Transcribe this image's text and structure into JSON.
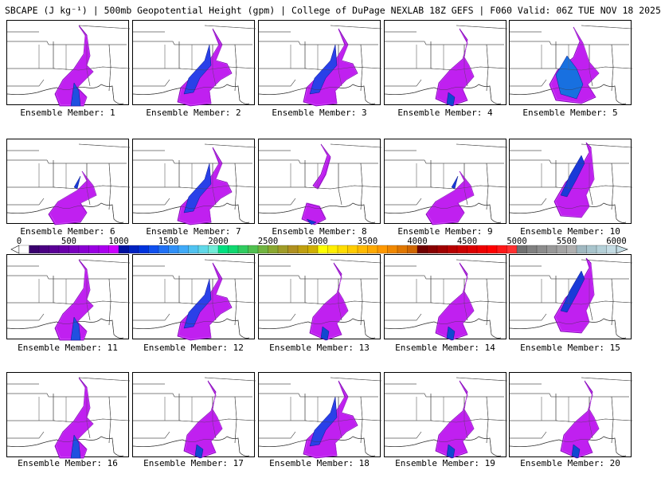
{
  "title": "SBCAPE (J kg⁻¹) | 500mb Geopotential Height (gpm) | College of DuPage NEXLAB 18Z GEFS | F060 Valid: 06Z TUE NOV 18 2025",
  "label_prefix": "Ensemble Member: ",
  "members": [
    {
      "number": 1,
      "label": "Ensemble Member: 1",
      "pattern": "a"
    },
    {
      "number": 2,
      "label": "Ensemble Member: 2",
      "pattern": "b"
    },
    {
      "number": 3,
      "label": "Ensemble Member: 3",
      "pattern": "b"
    },
    {
      "number": 4,
      "label": "Ensemble Member: 4",
      "pattern": "c"
    },
    {
      "number": 5,
      "label": "Ensemble Member: 5",
      "pattern": "d"
    },
    {
      "number": 6,
      "label": "Ensemble Member: 6",
      "pattern": "e"
    },
    {
      "number": 7,
      "label": "Ensemble Member: 7",
      "pattern": "b"
    },
    {
      "number": 8,
      "label": "Ensemble Member: 8",
      "pattern": "f"
    },
    {
      "number": 9,
      "label": "Ensemble Member: 9",
      "pattern": "e"
    },
    {
      "number": 10,
      "label": "Ensemble Member: 10",
      "pattern": "g"
    },
    {
      "number": 11,
      "label": "Ensemble Member: 11",
      "pattern": "a"
    },
    {
      "number": 12,
      "label": "Ensemble Member: 12",
      "pattern": "b"
    },
    {
      "number": 13,
      "label": "Ensemble Member: 13",
      "pattern": "c"
    },
    {
      "number": 14,
      "label": "Ensemble Member: 14",
      "pattern": "c"
    },
    {
      "number": 15,
      "label": "Ensemble Member: 15",
      "pattern": "g"
    },
    {
      "number": 16,
      "label": "Ensemble Member: 16",
      "pattern": "a"
    },
    {
      "number": 17,
      "label": "Ensemble Member: 17",
      "pattern": "c"
    },
    {
      "number": 18,
      "label": "Ensemble Member: 18",
      "pattern": "b"
    },
    {
      "number": 19,
      "label": "Ensemble Member: 19",
      "pattern": "c"
    },
    {
      "number": 20,
      "label": "Ensemble Member: 20",
      "pattern": "c"
    }
  ],
  "colorbar": {
    "min": 0,
    "max": 6000,
    "step": 100,
    "tick_labels": [
      "0",
      "500",
      "1000",
      "1500",
      "2000",
      "2500",
      "3000",
      "3500",
      "4000",
      "4500",
      "5000",
      "5500",
      "6000"
    ],
    "colors": [
      "#ffffff",
      "#3a006e",
      "#4a0082",
      "#5a0096",
      "#6a00aa",
      "#7a00be",
      "#8a00d2",
      "#9a00e2",
      "#aa00ee",
      "#cc00ff",
      "#0011a0",
      "#0022c0",
      "#0033dd",
      "#1050ee",
      "#2070f5",
      "#3090f8",
      "#40aaf8",
      "#50c2f0",
      "#60d8e8",
      "#70ecd8",
      "#00e080",
      "#10d870",
      "#30cc60",
      "#50c050",
      "#70b440",
      "#8aa830",
      "#a09c28",
      "#b09020",
      "#c0a010",
      "#d0b000",
      "#ffff00",
      "#ffee00",
      "#ffdd00",
      "#ffcc00",
      "#ffbb00",
      "#ffaa00",
      "#ff9900",
      "#f08800",
      "#e07700",
      "#d06600",
      "#700000",
      "#880000",
      "#a00000",
      "#b80000",
      "#cc0000",
      "#dd0000",
      "#ee0000",
      "#ff0000",
      "#ff1818",
      "#ff3030",
      "#707070",
      "#808080",
      "#8c8c8c",
      "#989898",
      "#a4a4a4",
      "#b0b0b0",
      "#a0b8c0",
      "#a8c4cc",
      "#b4d0d8",
      "#c4dce4"
    ]
  }
}
